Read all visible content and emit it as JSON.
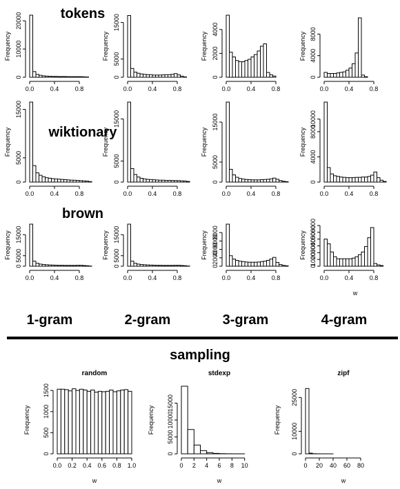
{
  "labels": {
    "row_tokens": "tokens",
    "row_wiktionary": "wiktionary",
    "row_brown": "brown",
    "col_1gram": "1-gram",
    "col_2gram": "2-gram",
    "col_3gram": "3-gram",
    "col_4gram": "4-gram",
    "section_sampling": "sampling"
  },
  "chart_data": [
    {
      "type": "bar",
      "subplot": "tokens 1-gram",
      "ylabel": "Frequency",
      "xlim": [
        0,
        1
      ],
      "ylim": [
        0,
        22000
      ],
      "yticks": [
        0,
        10000,
        20000
      ],
      "xticks": [
        "0.0",
        "0.4",
        "0.8"
      ],
      "bin_width": 0.05,
      "values": [
        22000,
        2000,
        1000,
        700,
        500,
        400,
        350,
        300,
        300,
        250,
        250,
        250,
        200,
        200,
        200,
        200,
        200,
        150,
        100,
        0
      ]
    },
    {
      "type": "bar",
      "subplot": "tokens 2-gram",
      "ylabel": "Frequency",
      "xlim": [
        0,
        1
      ],
      "ylim": [
        0,
        17000
      ],
      "yticks": [
        0,
        5000,
        15000
      ],
      "xticks": [
        "0.0",
        "0.4",
        "0.8"
      ],
      "bin_width": 0.05,
      "values": [
        16900,
        2400,
        1400,
        1100,
        900,
        800,
        700,
        700,
        600,
        600,
        600,
        650,
        700,
        700,
        800,
        1000,
        650,
        300,
        100,
        0
      ]
    },
    {
      "type": "bar",
      "subplot": "tokens 3-gram",
      "ylabel": "Frequency",
      "xlim": [
        0,
        1
      ],
      "ylim": [
        0,
        5200
      ],
      "yticks": [
        0,
        2000,
        4000
      ],
      "xticks": [
        "0.0",
        "0.4",
        "0.8"
      ],
      "bin_width": 0.05,
      "values": [
        5200,
        2100,
        1700,
        1400,
        1300,
        1300,
        1400,
        1500,
        1700,
        1900,
        2200,
        2600,
        2800,
        400,
        200,
        100,
        0,
        0,
        0,
        0
      ]
    },
    {
      "type": "bar",
      "subplot": "tokens 4-gram",
      "ylabel": "Frequency",
      "xlim": [
        0,
        1
      ],
      "ylim": [
        0,
        11500
      ],
      "yticks": [
        0,
        4000,
        8000
      ],
      "xticks": [
        "0.0",
        "0.4",
        "0.8"
      ],
      "bin_width": 0.05,
      "values": [
        900,
        700,
        700,
        700,
        800,
        900,
        1000,
        1300,
        1700,
        2500,
        4500,
        11000,
        400,
        100,
        0,
        0,
        0,
        0,
        0,
        0
      ]
    },
    {
      "type": "bar",
      "subplot": "wiktionary 1-gram",
      "ylabel": "Frequency",
      "xlim": [
        0,
        1
      ],
      "ylim": [
        0,
        16500
      ],
      "yticks": [
        0,
        5000,
        15000
      ],
      "xticks": [
        "0.0",
        "0.4",
        "0.8"
      ],
      "bin_width": 0.05,
      "values": [
        16500,
        3400,
        1900,
        1400,
        1100,
        900,
        800,
        700,
        650,
        600,
        550,
        500,
        450,
        400,
        380,
        350,
        300,
        250,
        200,
        100
      ]
    },
    {
      "type": "bar",
      "subplot": "wiktionary 2-gram",
      "ylabel": "Frequency",
      "xlim": [
        0,
        1
      ],
      "ylim": [
        0,
        19000
      ],
      "yticks": [
        0,
        5000,
        15000
      ],
      "xticks": [
        "0.0",
        "0.4",
        "0.8"
      ],
      "bin_width": 0.05,
      "values": [
        19000,
        3200,
        1800,
        1200,
        900,
        750,
        650,
        600,
        550,
        500,
        450,
        450,
        400,
        400,
        380,
        360,
        350,
        300,
        250,
        150
      ]
    },
    {
      "type": "bar",
      "subplot": "wiktionary 3-gram",
      "ylabel": "Frequency",
      "xlim": [
        0,
        1
      ],
      "ylim": [
        0,
        20000
      ],
      "yticks": [
        0,
        5000,
        15000
      ],
      "xticks": [
        "0.0",
        "0.4",
        "0.8"
      ],
      "bin_width": 0.05,
      "values": [
        20000,
        3200,
        1800,
        1200,
        900,
        750,
        650,
        600,
        550,
        550,
        550,
        600,
        650,
        700,
        800,
        1000,
        700,
        400,
        200,
        100
      ]
    },
    {
      "type": "bar",
      "subplot": "wiktionary 4-gram",
      "ylabel": "Frequency",
      "xlim": [
        0,
        1
      ],
      "ylim": [
        0,
        12700
      ],
      "yticks": [
        0,
        4000,
        8000,
        10000
      ],
      "xticks": [
        "0.0",
        "0.4",
        "0.8"
      ],
      "bin_width": 0.05,
      "values": [
        12700,
        2300,
        1300,
        1000,
        900,
        800,
        750,
        700,
        700,
        700,
        750,
        750,
        800,
        800,
        900,
        1100,
        1600,
        700,
        300,
        100
      ]
    },
    {
      "type": "bar",
      "subplot": "brown 1-gram",
      "ylabel": "Frequency",
      "xlim": [
        0,
        1
      ],
      "ylim": [
        0,
        20000
      ],
      "yticks": [
        0,
        5000,
        15000
      ],
      "xticks": [
        "0.0",
        "0.4",
        "0.8"
      ],
      "bin_width": 0.05,
      "values": [
        20000,
        2400,
        1400,
        1000,
        800,
        700,
        600,
        550,
        500,
        450,
        450,
        400,
        400,
        400,
        400,
        450,
        450,
        350,
        250,
        100
      ]
    },
    {
      "type": "bar",
      "subplot": "brown 2-gram",
      "ylabel": "Frequency",
      "xlim": [
        0,
        1
      ],
      "ylim": [
        0,
        20000
      ],
      "yticks": [
        0,
        5000,
        15000
      ],
      "xticks": [
        "0.0",
        "0.4",
        "0.8"
      ],
      "bin_width": 0.05,
      "values": [
        20000,
        2400,
        1400,
        1000,
        800,
        700,
        600,
        550,
        500,
        450,
        450,
        400,
        400,
        400,
        400,
        450,
        450,
        350,
        250,
        100
      ]
    },
    {
      "type": "bar",
      "subplot": "brown 3-gram",
      "ylabel": "Frequency",
      "xlim": [
        0,
        1
      ],
      "ylim": [
        0,
        10000
      ],
      "yticks": [
        0,
        2000,
        4000,
        6000,
        8000
      ],
      "xticks": [
        "0.0",
        "0.4",
        "0.8"
      ],
      "bin_width": 0.05,
      "values": [
        10000,
        2500,
        1700,
        1400,
        1200,
        1100,
        1000,
        950,
        950,
        950,
        1000,
        1100,
        1200,
        1400,
        1700,
        2100,
        900,
        400,
        200,
        100
      ]
    },
    {
      "type": "bar",
      "subplot": "brown 4-gram",
      "ylabel": "Frequency",
      "xlabel": "w",
      "xlim": [
        0,
        1
      ],
      "ylim": [
        0,
        6200
      ],
      "yticks": [
        0,
        1000,
        2000,
        3000,
        4000,
        5000,
        6000
      ],
      "xticks": [
        "0.0",
        "0.4",
        "0.8"
      ],
      "bin_width": 0.05,
      "values": [
        4000,
        3300,
        2100,
        1400,
        1100,
        1100,
        1100,
        1100,
        1100,
        1200,
        1400,
        1700,
        2100,
        2900,
        4200,
        5700,
        400,
        200,
        100,
        0
      ]
    },
    {
      "type": "bar",
      "subplot": "random",
      "title": "random",
      "ylabel": "Frequency",
      "xlabel": "w",
      "xlim": [
        0,
        1
      ],
      "ylim": [
        0,
        1600
      ],
      "yticks": [
        0,
        500,
        1000,
        1500
      ],
      "xticks": [
        "0.0",
        "0.2",
        "0.4",
        "0.6",
        "0.8",
        "1.0"
      ],
      "bin_width": 0.05,
      "values": [
        1530,
        1530,
        1520,
        1490,
        1540,
        1500,
        1530,
        1510,
        1480,
        1510,
        1460,
        1480,
        1470,
        1480,
        1510,
        1470,
        1490,
        1510,
        1520,
        1480
      ]
    },
    {
      "type": "bar",
      "subplot": "stdexp",
      "title": "stdexp",
      "ylabel": "Frequency",
      "xlabel": "w",
      "xlim": [
        0,
        12
      ],
      "ylim": [
        0,
        20000
      ],
      "yticks": [
        0,
        5000,
        10000,
        15000
      ],
      "xticks": [
        "0",
        "2",
        "4",
        "6",
        "8",
        "10"
      ],
      "bin_width": 1,
      "values": [
        20000,
        7200,
        2600,
        950,
        350,
        130,
        50,
        20,
        10,
        5,
        0,
        0
      ]
    },
    {
      "type": "bar",
      "subplot": "zipf",
      "title": "zipf",
      "ylabel": "Frequency",
      "xlabel": "w",
      "xlim": [
        0,
        110
      ],
      "ylim": [
        0,
        30000
      ],
      "yticks": [
        0,
        10000,
        25000
      ],
      "xticks": [
        "0",
        "20",
        "40",
        "60",
        "80"
      ],
      "bin_width": 5,
      "values": [
        29000,
        300,
        60,
        20,
        10,
        5,
        3,
        2,
        1,
        1,
        1,
        1,
        0,
        0,
        0,
        0,
        0,
        0,
        0,
        0,
        0
      ]
    }
  ]
}
